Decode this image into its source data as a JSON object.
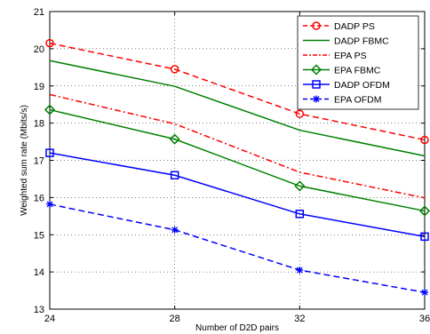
{
  "chart_data": {
    "type": "line",
    "title": "",
    "xlabel": "Number of D2D pairs",
    "ylabel": "Weighted sum rate (Mbits/s)",
    "x": [
      24,
      28,
      32,
      36
    ],
    "xlim": [
      24,
      36
    ],
    "ylim": [
      13,
      21
    ],
    "xticks": [
      24,
      28,
      32,
      36
    ],
    "yticks": [
      13,
      14,
      15,
      16,
      17,
      18,
      19,
      20,
      21
    ],
    "grid": "on",
    "legend_position": "top-right",
    "series": [
      {
        "name": "DADP PS",
        "values": [
          20.15,
          19.45,
          18.25,
          17.55
        ],
        "color": "#ff0000",
        "line_style": "dashed",
        "marker": "circle"
      },
      {
        "name": "DADP FBMC",
        "values": [
          19.68,
          18.99,
          17.81,
          17.12
        ],
        "color": "#008000",
        "line_style": "solid",
        "marker": "none"
      },
      {
        "name": "EPA PS",
        "values": [
          18.77,
          17.98,
          16.68,
          15.99
        ],
        "color": "#ff0000",
        "line_style": "dash-dot",
        "marker": "none"
      },
      {
        "name": "EPA FBMC",
        "values": [
          18.36,
          17.57,
          16.31,
          15.64
        ],
        "color": "#008000",
        "line_style": "solid",
        "marker": "diamond"
      },
      {
        "name": "DADP OFDM",
        "values": [
          17.2,
          16.6,
          15.56,
          14.95
        ],
        "color": "#0000ff",
        "line_style": "solid",
        "marker": "square"
      },
      {
        "name": "EPA OFDM",
        "values": [
          15.82,
          15.13,
          14.05,
          13.45
        ],
        "color": "#0000ff",
        "line_style": "dashed",
        "marker": "asterisk"
      }
    ]
  }
}
